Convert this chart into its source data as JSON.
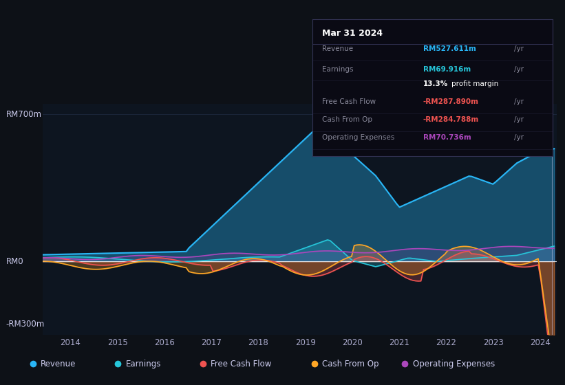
{
  "bg_color": "#0d1117",
  "plot_bg_color": "#0d1520",
  "y_label_top": "RM700m",
  "y_label_mid": "RM0",
  "y_label_bot": "-RM300m",
  "x_ticks": [
    "2014",
    "2015",
    "2016",
    "2017",
    "2018",
    "2019",
    "2020",
    "2021",
    "2022",
    "2023",
    "2024"
  ],
  "ylim": [
    -350,
    750
  ],
  "colors": {
    "revenue": "#29b6f6",
    "earnings": "#26c6da",
    "free_cash_flow": "#ef5350",
    "cash_from_op": "#ffa726",
    "operating_expenses": "#ab47bc"
  },
  "tooltip": {
    "date": "Mar 31 2024",
    "revenue_val": "RM527.611m",
    "revenue_color": "#29b6f6",
    "earnings_val": "RM69.916m",
    "earnings_color": "#26c6da",
    "margin": "13.3%",
    "fcf_val": "-RM287.890m",
    "fcf_color": "#ef5350",
    "cashop_val": "-RM284.788m",
    "cashop_color": "#ef5350",
    "opex_val": "RM70.736m",
    "opex_color": "#ab47bc"
  },
  "legend": [
    {
      "label": "Revenue",
      "color": "#29b6f6"
    },
    {
      "label": "Earnings",
      "color": "#26c6da"
    },
    {
      "label": "Free Cash Flow",
      "color": "#ef5350"
    },
    {
      "label": "Cash From Op",
      "color": "#ffa726"
    },
    {
      "label": "Operating Expenses",
      "color": "#ab47bc"
    }
  ]
}
